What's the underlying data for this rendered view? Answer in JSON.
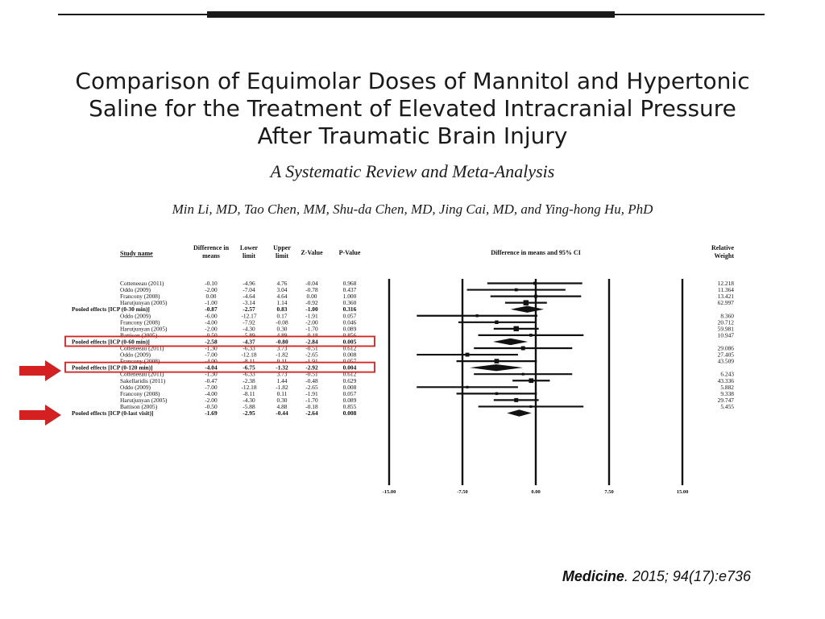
{
  "slide": {
    "title_lines": [
      "Comparison of Equimolar Doses of Mannitol and Hypertonic",
      "Saline for the Treatment of Elevated Intracranial Pressure",
      "After Traumatic Brain Injury"
    ],
    "subtitle": "A Systematic Review and Meta-Analysis",
    "authors": "Min Li, MD, Tao Chen, MM, Shu-da Chen, MD, Jing Cai, MD, and Ying-hong Hu, PhD",
    "citation": {
      "journal": "Medicine",
      "details": ". 2015; 94(17):e736"
    }
  },
  "colors": {
    "highlight": "#d42020",
    "ink": "#111111"
  },
  "table": {
    "headers": {
      "study": "Study name",
      "diff_line1": "Difference in",
      "diff_line2": "means",
      "lower_line1": "Lower",
      "lower_line2": "limit",
      "upper_line1": "Upper",
      "upper_line2": "limit",
      "z": "Z-Value",
      "p": "P-Value",
      "plot_header": "Difference in means and 95% CI",
      "weight_line1": "Relative",
      "weight_line2": "Weight"
    },
    "rows": [
      {
        "study": "Cotteneeau (2011)",
        "diff": "-0.10",
        "lower": "-4.96",
        "upper": "4.76",
        "z": "-0.04",
        "p": "0.968",
        "weight": "12.218",
        "pooled": false
      },
      {
        "study": "Oddo (2009)",
        "diff": "-2.00",
        "lower": "-7.04",
        "upper": "3.04",
        "z": "-0.78",
        "p": "0.437",
        "weight": "11.364",
        "pooled": false
      },
      {
        "study": "Francony (2008)",
        "diff": "0.00",
        "lower": "-4.64",
        "upper": "4.64",
        "z": "0.00",
        "p": "1.000",
        "weight": "13.421",
        "pooled": false
      },
      {
        "study": "Harutjunyan (2005)",
        "diff": "-1.00",
        "lower": "-3.14",
        "upper": "1.14",
        "z": "-0.92",
        "p": "0.360",
        "weight": "62.997",
        "pooled": false
      },
      {
        "study": "Pooled effects [ICP (0-30 min)]",
        "diff": "-0.87",
        "lower": "-2.57",
        "upper": "0.83",
        "z": "-1.00",
        "p": "0.316",
        "weight": "",
        "pooled": true
      },
      {
        "study": "Oddo (2009)",
        "diff": "-6.00",
        "lower": "-12.17",
        "upper": "0.17",
        "z": "-1.91",
        "p": "0.057",
        "weight": "8.360",
        "pooled": false
      },
      {
        "study": "Francony (2008)",
        "diff": "-4.00",
        "lower": "-7.92",
        "upper": "-0.08",
        "z": "-2.00",
        "p": "0.046",
        "weight": "20.712",
        "pooled": false
      },
      {
        "study": "Harutjunyan (2005)",
        "diff": "-2.00",
        "lower": "-4.30",
        "upper": "0.30",
        "z": "-1.70",
        "p": "0.089",
        "weight": "59.981",
        "pooled": false
      },
      {
        "study": "Battison (2005)",
        "diff": "-0.50",
        "lower": "-5.89",
        "upper": "4.89",
        "z": "-0.18",
        "p": "0.856",
        "weight": "10.947",
        "pooled": false
      },
      {
        "study": "Pooled effects [ICP (0-60 min)]",
        "diff": "-2.58",
        "lower": "-4.37",
        "upper": "-0.80",
        "z": "-2.84",
        "p": "0.005",
        "weight": "",
        "pooled": true
      },
      {
        "study": "Cotteneeau (2011)",
        "diff": "-1.30",
        "lower": "-6.33",
        "upper": "3.73",
        "z": "-0.51",
        "p": "0.612",
        "weight": "29.086",
        "pooled": false
      },
      {
        "study": "Oddo (2009)",
        "diff": "-7.00",
        "lower": "-12.18",
        "upper": "-1.82",
        "z": "-2.65",
        "p": "0.008",
        "weight": "27.405",
        "pooled": false
      },
      {
        "study": "Francony (2008)",
        "diff": "-4.00",
        "lower": "-8.11",
        "upper": "0.11",
        "z": "-1.91",
        "p": "0.057",
        "weight": "43.509",
        "pooled": false
      },
      {
        "study": "Pooled effects [ICP (0-120 min)]",
        "diff": "-4.04",
        "lower": "-6.75",
        "upper": "-1.32",
        "z": "-2.92",
        "p": "0.004",
        "weight": "",
        "pooled": true
      },
      {
        "study": "Cotteneeau (2011)",
        "diff": "-1.30",
        "lower": "-6.33",
        "upper": "3.73",
        "z": "-0.51",
        "p": "0.612",
        "weight": "6.243",
        "pooled": false
      },
      {
        "study": "Sakellaridis (2011)",
        "diff": "-0.47",
        "lower": "-2.38",
        "upper": "1.44",
        "z": "-0.48",
        "p": "0.629",
        "weight": "43.336",
        "pooled": false
      },
      {
        "study": "Oddo (2009)",
        "diff": "-7.00",
        "lower": "-12.18",
        "upper": "-1.82",
        "z": "-2.65",
        "p": "0.008",
        "weight": "5.882",
        "pooled": false
      },
      {
        "study": "Francony (2008)",
        "diff": "-4.00",
        "lower": "-8.11",
        "upper": "0.11",
        "z": "-1.91",
        "p": "0.057",
        "weight": "9.338",
        "pooled": false
      },
      {
        "study": "Harutjunyan (2005)",
        "diff": "-2.00",
        "lower": "-4.30",
        "upper": "0.30",
        "z": "-1.70",
        "p": "0.089",
        "weight": "29.747",
        "pooled": false
      },
      {
        "study": "Battison (2005)",
        "diff": "-0.50",
        "lower": "-5.88",
        "upper": "4.88",
        "z": "-0.18",
        "p": "0.855",
        "weight": "5.455",
        "pooled": false
      },
      {
        "study": "Pooled effects [ICP (0-last visit)]",
        "diff": "-1.69",
        "lower": "-2.95",
        "upper": "-0.44",
        "z": "-2.64",
        "p": "0.008",
        "weight": "",
        "pooled": true
      }
    ],
    "highlighted_rows": [
      9,
      13
    ]
  },
  "chart_data": {
    "type": "forest",
    "title": "Difference in means and 95% CI",
    "xlim": [
      -15,
      15
    ],
    "x_ticks": [
      -15,
      -7.5,
      0,
      7.5,
      15
    ],
    "x_tick_labels": [
      "-15.00",
      "-7.50",
      "0.00",
      "7.50",
      "15.00"
    ],
    "estimates": [
      -0.1,
      -2.0,
      0.0,
      -1.0,
      -0.87,
      -6.0,
      -4.0,
      -2.0,
      -0.5,
      -2.58,
      -1.3,
      -7.0,
      -4.0,
      -4.04,
      -1.3,
      -0.47,
      -7.0,
      -4.0,
      -2.0,
      -0.5,
      -1.69
    ],
    "lower": [
      -4.96,
      -7.04,
      -4.64,
      -3.14,
      -2.57,
      -12.17,
      -7.92,
      -4.3,
      -5.89,
      -4.37,
      -6.33,
      -12.18,
      -8.11,
      -6.75,
      -6.33,
      -2.38,
      -12.18,
      -8.11,
      -4.3,
      -5.88,
      -2.95
    ],
    "upper": [
      4.76,
      3.04,
      4.64,
      1.14,
      0.83,
      0.17,
      -0.08,
      0.3,
      4.89,
      -0.8,
      3.73,
      -1.82,
      0.11,
      -1.32,
      3.73,
      1.44,
      -1.82,
      0.11,
      0.3,
      4.88,
      -0.44
    ]
  }
}
